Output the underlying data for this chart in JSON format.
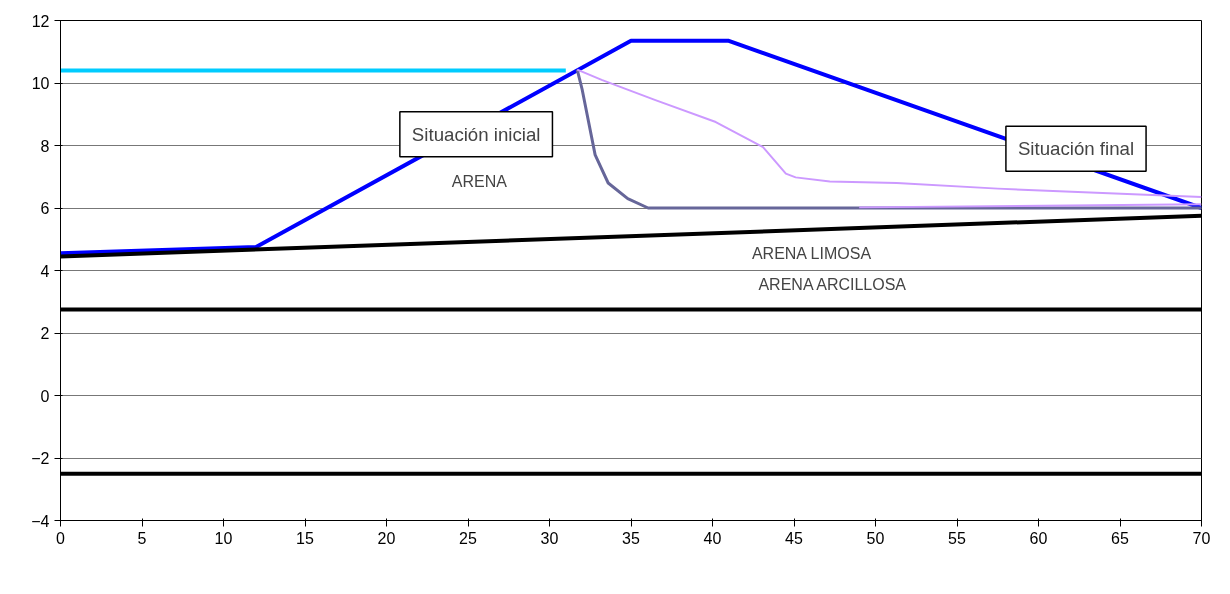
{
  "chart_data": {
    "type": "line",
    "series": [
      {
        "color": "#0000ff",
        "x": [
          0,
          12,
          35,
          41,
          70
        ],
        "values": [
          4.55,
          4.75,
          11.35,
          11.35,
          6.0
        ]
      },
      {
        "color": "#00ccff",
        "x": [
          0,
          31
        ],
        "values": [
          10.4,
          10.4
        ]
      },
      {
        "color": "#000000",
        "x": [
          0,
          70
        ],
        "values": [
          4.45,
          5.75
        ]
      },
      {
        "color": "#000000",
        "x": [
          0,
          70
        ],
        "values": [
          2.75,
          2.75
        ]
      },
      {
        "color": "#000000",
        "x": [
          0,
          70
        ],
        "values": [
          -2.5,
          -2.5
        ]
      },
      {
        "color": "#666699",
        "x": [
          31.7,
          32.0,
          32.8,
          33.6,
          34.8,
          36.05,
          70
        ],
        "values": [
          10.43,
          9.8,
          7.7,
          6.8,
          6.3,
          6.0,
          6.0
        ]
      },
      {
        "color": "#cc99ff",
        "x": [
          31.7,
          33.2,
          36.5,
          40.2,
          43.1,
          44.5,
          45.1,
          47.2,
          51.3,
          57.5,
          70
        ],
        "values": [
          10.43,
          10.1,
          9.45,
          8.75,
          7.95,
          7.1,
          6.98,
          6.85,
          6.8,
          6.62,
          6.35
        ]
      },
      {
        "color": "#cc99ff",
        "x": [
          49,
          70
        ],
        "values": [
          6.02,
          6.12
        ]
      }
    ],
    "xlim": [
      0,
      70
    ],
    "xticks": [
      0,
      5,
      10,
      15,
      20,
      25,
      30,
      35,
      40,
      45,
      50,
      55,
      60,
      65,
      70
    ],
    "ylim": [
      -4,
      12
    ],
    "yticks": [
      -4,
      -2,
      0,
      2,
      4,
      6,
      8,
      10,
      12
    ],
    "grid": "y",
    "marker": "none",
    "line_style": "solid",
    "annotations": [
      "Situación inicial",
      "Situación final",
      "ARENA",
      "ARENA LIMOSA",
      "ARENA ARCILLOSA"
    ]
  }
}
